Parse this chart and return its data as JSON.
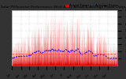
{
  "title": "Solar PV/Inverter Performance West Array Actual & Average Power Output",
  "title_fontsize": 3.2,
  "plot_bg_color": "#ffffff",
  "outer_bg": "#333333",
  "left_panel_color": "#222222",
  "ylim": [
    0,
    8
  ],
  "yticks": [
    1,
    2,
    3,
    4,
    5,
    6,
    7,
    8
  ],
  "ytick_fontsize": 2.8,
  "xtick_fontsize": 2.5,
  "grid_color": "#bbbbbb",
  "fill_color": "#dd0000",
  "line_color": "#dd0000",
  "avg_line_color": "#0000ff",
  "avg_line2_color": "#ff4444",
  "legend_actual": "Actual Power",
  "legend_average": "Average Power",
  "legend_fontsize": 2.8,
  "num_days": 365,
  "pts_per_day": 12,
  "peak_month": 6,
  "base_peak": 3.0,
  "max_peak": 7.5,
  "avg_level": 1.8,
  "noise_seed": 7
}
